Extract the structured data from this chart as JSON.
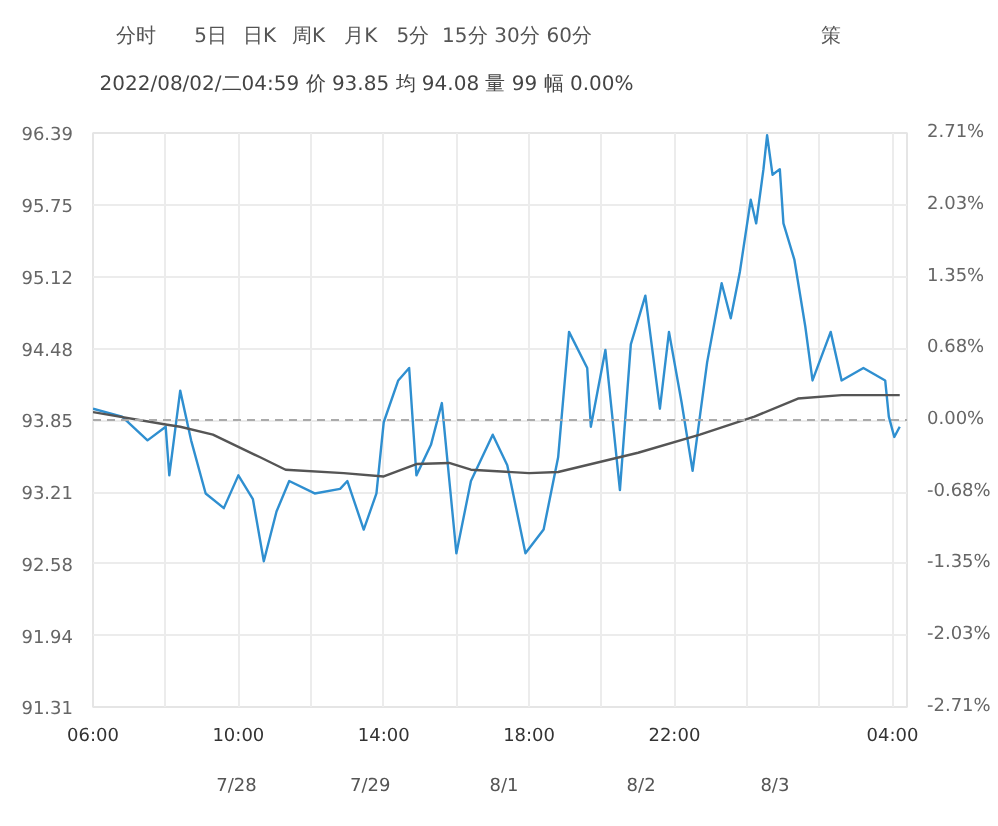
{
  "chart_data": {
    "type": "line",
    "subtitle": "2022/08/02/二04:59 价 93.85 均 94.08 量 99 幅 0.00%",
    "annotations": [
      "分时",
      "5日",
      "日K",
      "周K",
      "月K",
      "5分",
      "15分",
      "30分",
      "60分",
      "策",
      "7/28",
      "7/29",
      "8/1",
      "8/2",
      "8/3"
    ],
    "xlim": [
      "2022-08-01T06:00",
      "2022-08-02T04:24"
    ],
    "xticks": [
      {
        "value": "2022-08-01T06:00",
        "label": "06:00"
      },
      {
        "value": "2022-08-01T08:00",
        "label": null
      },
      {
        "value": "2022-08-01T10:00",
        "label": "10:00"
      },
      {
        "value": "2022-08-01T12:00",
        "label": null
      },
      {
        "value": "2022-08-01T14:00",
        "label": "14:00"
      },
      {
        "value": "2022-08-01T16:00",
        "label": null
      },
      {
        "value": "2022-08-01T18:00",
        "label": "18:00"
      },
      {
        "value": "2022-08-01T20:00",
        "label": null
      },
      {
        "value": "2022-08-01T22:00",
        "label": "22:00"
      },
      {
        "value": "2022-08-02T00:00",
        "label": null
      },
      {
        "value": "2022-08-02T02:00",
        "label": null
      },
      {
        "value": "2022-08-02T04:00",
        "label": "04:00"
      }
    ],
    "ylim": [
      91.31,
      96.39
    ],
    "yticks": [
      91.31,
      91.94,
      92.58,
      93.21,
      93.85,
      94.48,
      95.12,
      95.75,
      96.39
    ],
    "y2lim": [
      -2.71,
      2.71
    ],
    "y2ticks": [
      {
        "value": -2.71,
        "label": "-2.71%"
      },
      {
        "value": -2.03,
        "label": "-2.03%"
      },
      {
        "value": -1.35,
        "label": "-1.35%"
      },
      {
        "value": -0.68,
        "label": "-0.68%"
      },
      {
        "value": 0,
        "label": "0.00%"
      },
      {
        "value": 0.68,
        "label": "0.68%"
      },
      {
        "value": 1.35,
        "label": "1.35%"
      },
      {
        "value": 2.03,
        "label": "2.03%"
      },
      {
        "value": 2.71,
        "label": "2.71%"
      }
    ],
    "grid": true,
    "ref_lines": [
      {
        "axis": "y",
        "value": 93.85,
        "color": "#aaaaaa",
        "line_style": "dashed"
      }
    ],
    "series": [
      {
        "color": "#2f8fd0",
        "x": [
          "2022-08-01T06:00",
          "2022-08-01T06:48",
          "2022-08-01T07:30",
          "2022-08-01T08:00",
          "2022-08-01T08:06",
          "2022-08-01T08:24",
          "2022-08-01T08:42",
          "2022-08-01T09:06",
          "2022-08-01T09:36",
          "2022-08-01T10:00",
          "2022-08-01T10:24",
          "2022-08-01T10:42",
          "2022-08-01T11:03",
          "2022-08-01T11:24",
          "2022-08-01T12:06",
          "2022-08-01T12:48",
          "2022-08-01T13:00",
          "2022-08-01T13:27",
          "2022-08-01T13:48",
          "2022-08-01T14:00",
          "2022-08-01T14:24",
          "2022-08-01T14:42",
          "2022-08-01T14:54",
          "2022-08-01T15:18",
          "2022-08-01T15:36",
          "2022-08-01T16:00",
          "2022-08-01T16:24",
          "2022-08-01T17:00",
          "2022-08-01T17:24",
          "2022-08-01T17:54",
          "2022-08-01T18:24",
          "2022-08-01T18:48",
          "2022-08-01T19:06",
          "2022-08-01T19:36",
          "2022-08-01T19:42",
          "2022-08-01T20:06",
          "2022-08-01T20:30",
          "2022-08-01T20:48",
          "2022-08-01T21:12",
          "2022-08-01T21:36",
          "2022-08-01T21:51",
          "2022-08-01T22:12",
          "2022-08-01T22:30",
          "2022-08-01T22:54",
          "2022-08-01T23:18",
          "2022-08-01T23:33",
          "2022-08-01T23:48",
          "2022-08-02T00:06",
          "2022-08-02T00:15",
          "2022-08-02T00:27",
          "2022-08-02T00:33",
          "2022-08-02T00:42",
          "2022-08-02T00:54",
          "2022-08-02T01:00",
          "2022-08-02T01:18",
          "2022-08-02T01:36",
          "2022-08-02T01:48",
          "2022-08-02T02:18",
          "2022-08-02T02:36",
          "2022-08-02T03:12",
          "2022-08-02T03:48",
          "2022-08-02T03:54",
          "2022-08-02T04:03",
          "2022-08-02T04:12"
        ],
        "values": [
          93.95,
          93.88,
          93.67,
          93.79,
          93.36,
          94.11,
          93.67,
          93.2,
          93.07,
          93.36,
          93.15,
          92.6,
          93.04,
          93.31,
          93.2,
          93.24,
          93.31,
          92.88,
          93.2,
          93.83,
          94.2,
          94.31,
          93.36,
          93.63,
          94.0,
          92.67,
          93.31,
          93.72,
          93.45,
          92.67,
          92.88,
          93.52,
          94.63,
          94.31,
          93.79,
          94.47,
          93.23,
          94.52,
          94.95,
          93.95,
          94.63,
          94.0,
          93.4,
          94.36,
          95.06,
          94.75,
          95.16,
          95.8,
          95.59,
          96.07,
          96.37,
          96.02,
          96.07,
          95.59,
          95.27,
          94.68,
          94.2,
          94.63,
          94.2,
          94.31,
          94.2,
          93.88,
          93.7,
          93.79
        ]
      },
      {
        "color": "#555555",
        "x": [
          "2022-08-01T06:00",
          "2022-08-01T08:00",
          "2022-08-01T08:24",
          "2022-08-01T09:18",
          "2022-08-01T10:36",
          "2022-08-01T11:18",
          "2022-08-01T12:54",
          "2022-08-01T14:00",
          "2022-08-01T14:54",
          "2022-08-01T15:48",
          "2022-08-01T16:24",
          "2022-08-01T18:00",
          "2022-08-01T18:48",
          "2022-08-01T21:00",
          "2022-08-01T22:42",
          "2022-08-02T00:12",
          "2022-08-02T01:24",
          "2022-08-02T02:36",
          "2022-08-02T04:12"
        ],
        "values": [
          93.92,
          93.81,
          93.79,
          93.72,
          93.52,
          93.41,
          93.38,
          93.35,
          93.46,
          93.47,
          93.41,
          93.38,
          93.39,
          93.56,
          93.72,
          93.88,
          94.04,
          94.07,
          94.07
        ]
      }
    ]
  }
}
